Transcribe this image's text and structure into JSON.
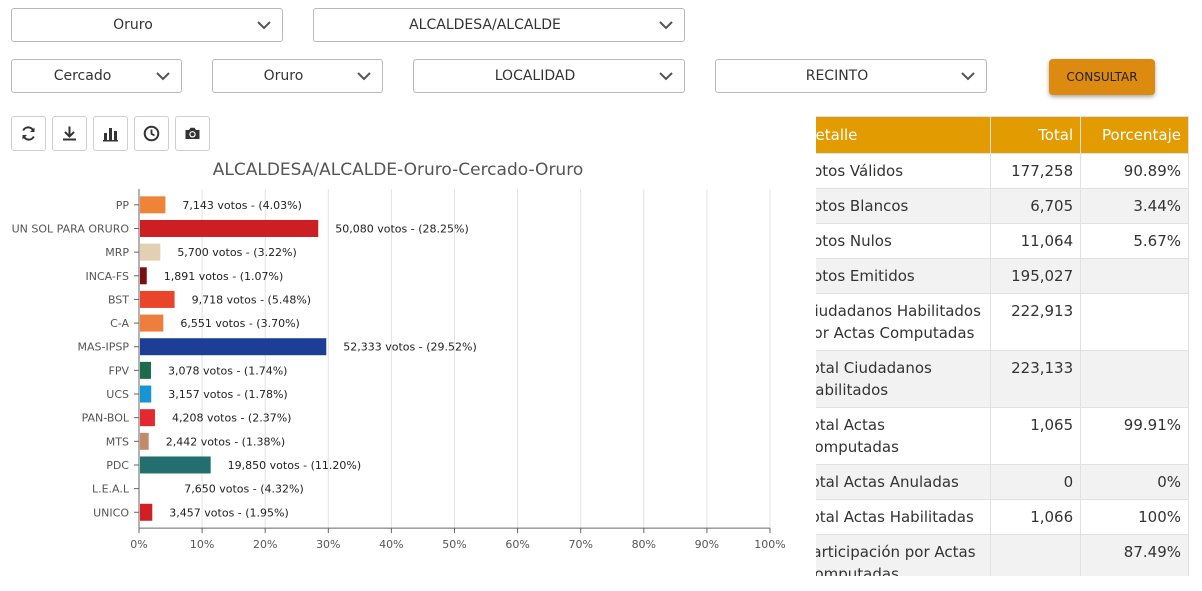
{
  "filters": {
    "row1": [
      "Oruro",
      "ALCALDESA/ALCALDE"
    ],
    "row2": [
      "Cercado",
      "Oruro",
      "LOCALIDAD",
      "RECINTO"
    ],
    "button": "CONSULTAR"
  },
  "toolbar": {
    "icons": [
      "refresh-icon",
      "download-icon",
      "bar-chart-icon",
      "clock-icon",
      "camera-icon"
    ]
  },
  "chart_data": {
    "type": "bar",
    "orientation": "horizontal",
    "title": "ALCALDESA/ALCALDE-Oruro-Cercado-Oruro",
    "categories": [
      "PP",
      "UN SOL PARA ORURO",
      "MRP",
      "INCA-FS",
      "BST",
      "C-A",
      "MAS-IPSP",
      "FPV",
      "UCS",
      "PAN-BOL",
      "MTS",
      "PDC",
      "L.E.A.L",
      "UNICO"
    ],
    "values": [
      4.03,
      28.25,
      3.22,
      1.07,
      5.48,
      3.7,
      29.52,
      1.74,
      1.78,
      2.37,
      1.38,
      11.2,
      4.32,
      1.95
    ],
    "labels": [
      "7,143 votos - (4.03%)",
      "50,080 votos - (28.25%)",
      "5,700 votos - (3.22%)",
      "1,891 votos - (1.07%)",
      "9,718 votos - (5.48%)",
      "6,551 votos - (3.70%)",
      "52,333 votos - (29.52%)",
      "3,078 votos - (1.74%)",
      "3,157 votos - (1.78%)",
      "4,208 votos - (2.37%)",
      "2,442 votos - (1.38%)",
      "19,850 votos - (11.20%)",
      "7,650 votos - (4.32%)",
      "3,457 votos - (1.95%)"
    ],
    "colors": [
      "#ee8437",
      "#cc1f24",
      "#e3cfb1",
      "#7a1010",
      "#e8452a",
      "#ee7e3d",
      "#1c3e95",
      "#1c6b4b",
      "#1795d3",
      "#e42831",
      "#c28c6c",
      "#236e6e",
      "#ffffff",
      "#d21f23"
    ],
    "xticks": [
      "0%",
      "10%",
      "20%",
      "30%",
      "40%",
      "50%",
      "60%",
      "70%",
      "80%",
      "90%",
      "100%"
    ],
    "xlim": [
      0,
      100
    ],
    "grid": true
  },
  "table": {
    "headers": [
      "Detalle",
      "Total",
      "Porcentaje"
    ],
    "rows": [
      [
        "Votos Válidos",
        "177,258",
        "90.89%"
      ],
      [
        "Votos Blancos",
        "6,705",
        "3.44%"
      ],
      [
        "Votos Nulos",
        "11,064",
        "5.67%"
      ],
      [
        "Votos Emitidos",
        "195,027",
        ""
      ],
      [
        "Ciudadanos Habilitados por Actas Computadas",
        "222,913",
        ""
      ],
      [
        "Total Ciudadanos Habilitados",
        "223,133",
        ""
      ],
      [
        "Total Actas Computadas",
        "1,065",
        "99.91%"
      ],
      [
        "Total Actas Anuladas",
        "0",
        "0%"
      ],
      [
        "Total Actas Habilitadas",
        "1,066",
        "100%"
      ],
      [
        "Participación por Actas Computadas",
        "",
        "87.49%"
      ]
    ]
  }
}
